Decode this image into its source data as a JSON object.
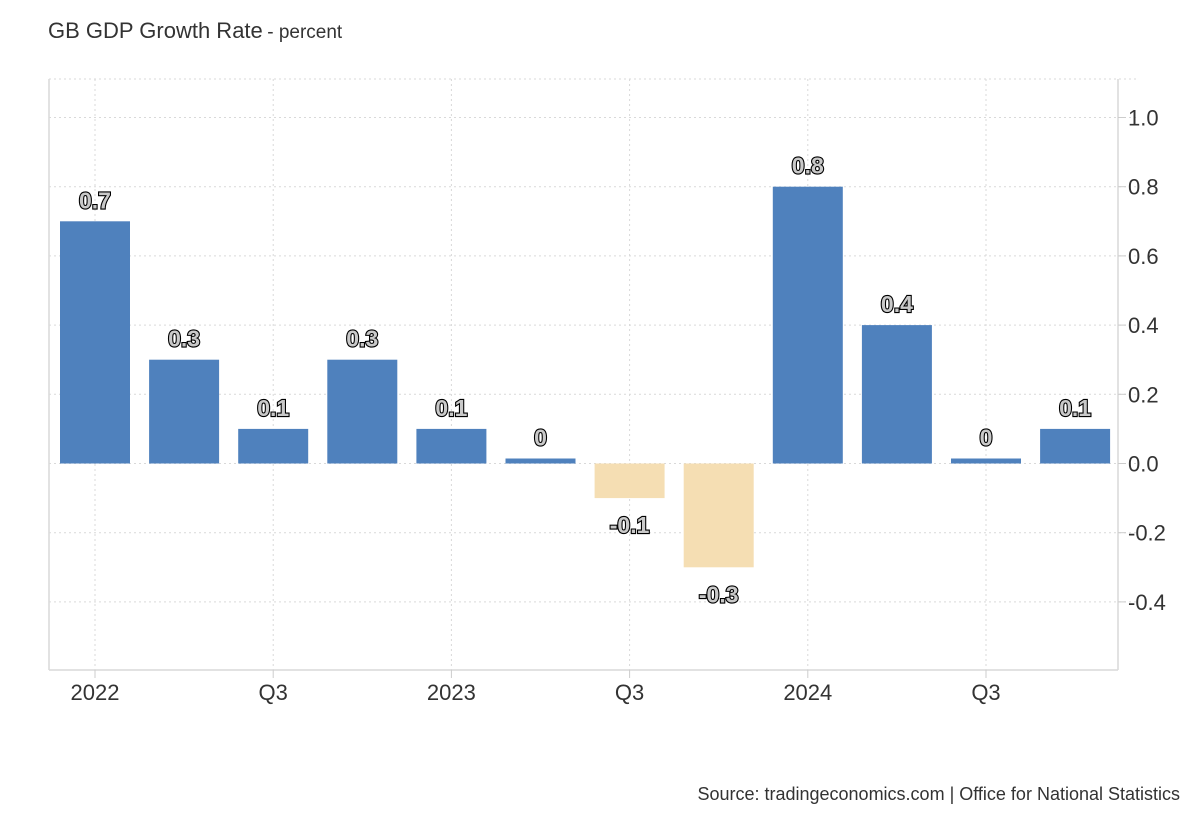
{
  "chart_data": {
    "type": "bar",
    "title": "GB GDP Growth Rate",
    "unit": "- percent",
    "categories": [
      "2022 Q1",
      "2022 Q2",
      "2022 Q3",
      "2022 Q4",
      "2023 Q1",
      "2023 Q2",
      "2023 Q3",
      "2023 Q4",
      "2024 Q1",
      "2024 Q2",
      "2024 Q3",
      "2024 Q4"
    ],
    "values": [
      0.7,
      0.3,
      0.1,
      0.3,
      0.1,
      0,
      -0.1,
      -0.3,
      0.8,
      0.4,
      0,
      0.1
    ],
    "data_labels": [
      "0.7",
      "0.3",
      "0.1",
      "0.3",
      "0.1",
      "0",
      "-0.1",
      "-0.3",
      "0.8",
      "0.4",
      "0",
      "0.1"
    ],
    "x_tick_labels": [
      {
        "index": 0,
        "label": "2022"
      },
      {
        "index": 2,
        "label": "Q3"
      },
      {
        "index": 4,
        "label": "2023"
      },
      {
        "index": 6,
        "label": "Q3"
      },
      {
        "index": 8,
        "label": "2024"
      },
      {
        "index": 10,
        "label": "Q3"
      }
    ],
    "y_ticks": [
      "1.0",
      "0.8",
      "0.6",
      "0.4",
      "0.2",
      "0.0",
      "-0.2",
      "-0.4"
    ],
    "ylim": [
      -0.6,
      1.1
    ],
    "y_axis_position": "right",
    "grid": true,
    "colors": {
      "positive": "#4f81bd",
      "negative": "#f5deb3"
    },
    "source": "Source: tradingeconomics.com | Office for National Statistics"
  }
}
